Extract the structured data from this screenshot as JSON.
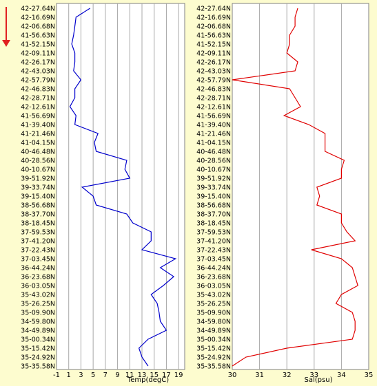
{
  "direction_arrow": {
    "color": "#e02020",
    "icon": "arrow-down-icon"
  },
  "latitude_labels": [
    "42-27.64N",
    "42-16.69N",
    "42-06.68N",
    "41-56.63N",
    "41-52.15N",
    "42-09.11N",
    "42-26.17N",
    "42-43.03N",
    "42-57.79N",
    "42-46.83N",
    "42-28.71N",
    "42-12.61N",
    "41-56.69N",
    "41-39.40N",
    "41-21.46N",
    "41-04.15N",
    "40-46.48N",
    "40-28.56N",
    "40-10.67N",
    "39-51.92N",
    "39-33.74N",
    "39-15.40N",
    "38-56.68N",
    "38-37.70N",
    "38-18.45N",
    "37-59.53N",
    "37-41.20N",
    "37-22.43N",
    "37-03.45N",
    "36-44.24N",
    "36-23.68N",
    "36-03.05N",
    "35-43.02N",
    "35-26.25N",
    "35-09.90N",
    "34-59.80N",
    "34-49.89N",
    "35-00.34N",
    "35-15.42N",
    "35-24.92N",
    "35-35.58N"
  ],
  "chart_data": [
    {
      "type": "line",
      "xlabel": "Temp(degC)",
      "ylabel": "",
      "x_ticks": [
        -1,
        1,
        3,
        5,
        7,
        9,
        11,
        13,
        15,
        17,
        19
      ],
      "xlim": [
        -1,
        20
      ],
      "grid": "vertical",
      "series_color": "#0000cc",
      "stations": [
        "42-27.64N",
        "42-16.69N",
        "42-06.68N",
        "41-56.63N",
        "41-52.15N",
        "42-09.11N",
        "42-26.17N",
        "42-43.03N",
        "42-57.79N",
        "42-46.83N",
        "42-28.71N",
        "42-12.61N",
        "41-56.69N",
        "41-39.40N",
        "41-21.46N",
        "41-04.15N",
        "40-46.48N",
        "40-28.56N",
        "40-10.67N",
        "39-51.92N",
        "39-33.74N",
        "39-15.40N",
        "38-56.68N",
        "38-37.70N",
        "38-18.45N",
        "37-59.53N",
        "37-41.20N",
        "37-22.43N",
        "37-03.45N",
        "36-44.24N",
        "36-23.68N",
        "36-03.05N",
        "35-43.02N",
        "35-26.25N",
        "35-09.90N",
        "34-59.80N",
        "34-49.89N",
        "35-00.34N",
        "35-15.42N",
        "35-24.92N",
        "35-35.58N"
      ],
      "values": [
        4.5,
        2.2,
        2.0,
        1.8,
        1.5,
        2.0,
        2.0,
        1.8,
        3.0,
        2.0,
        2.0,
        1.2,
        2.2,
        2.0,
        5.8,
        5.2,
        5.5,
        10.5,
        10.2,
        11.0,
        3.2,
        5.0,
        5.5,
        10.5,
        11.5,
        14.5,
        14.5,
        13.0,
        18.5,
        16.0,
        18.2,
        16.5,
        14.5,
        15.5,
        15.8,
        16.0,
        17.0,
        14.0,
        12.5,
        13.0,
        14.0
      ]
    },
    {
      "type": "line",
      "xlabel": "Sal(psu)",
      "ylabel": "",
      "x_ticks": [
        30,
        31,
        32,
        33,
        34,
        35
      ],
      "xlim": [
        30,
        35
      ],
      "grid": "vertical",
      "series_color": "#e00000",
      "stations": [
        "42-27.64N",
        "42-16.69N",
        "42-06.68N",
        "41-56.63N",
        "41-52.15N",
        "42-09.11N",
        "42-26.17N",
        "42-43.03N",
        "42-57.79N",
        "42-46.83N",
        "42-28.71N",
        "42-12.61N",
        "41-56.69N",
        "41-39.40N",
        "41-21.46N",
        "41-04.15N",
        "40-46.48N",
        "40-28.56N",
        "40-10.67N",
        "39-51.92N",
        "39-33.74N",
        "39-15.40N",
        "38-56.68N",
        "38-37.70N",
        "38-18.45N",
        "37-59.53N",
        "37-41.20N",
        "37-22.43N",
        "37-03.45N",
        "36-44.24N",
        "36-23.68N",
        "36-03.05N",
        "35-43.02N",
        "35-26.25N",
        "35-09.90N",
        "34-59.80N",
        "34-49.89N",
        "35-00.34N",
        "35-15.42N",
        "35-24.92N",
        "35-35.58N"
      ],
      "values": [
        32.4,
        32.3,
        32.3,
        32.1,
        32.1,
        32.0,
        32.4,
        32.3,
        30.0,
        32.1,
        32.3,
        32.5,
        31.9,
        32.8,
        33.4,
        33.4,
        33.4,
        34.1,
        34.0,
        34.0,
        33.1,
        33.2,
        33.1,
        34.0,
        34.0,
        34.2,
        34.5,
        32.9,
        34.0,
        34.4,
        34.5,
        34.6,
        34.0,
        33.8,
        34.4,
        34.5,
        34.5,
        34.4,
        32.0,
        30.5,
        30.0
      ]
    }
  ]
}
